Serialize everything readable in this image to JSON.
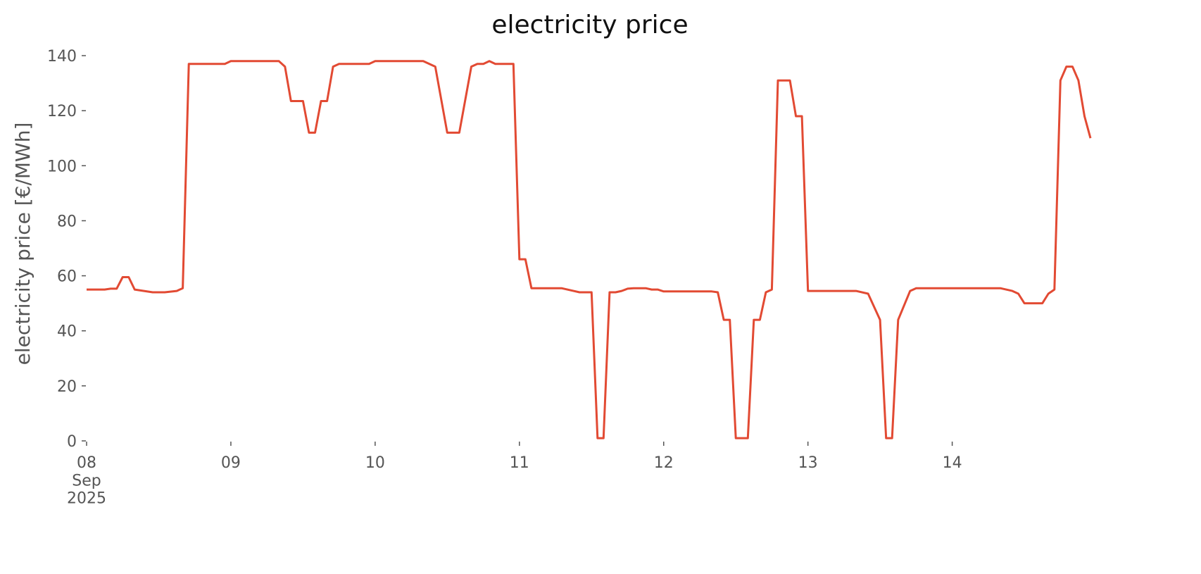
{
  "chart_data": {
    "type": "line",
    "title": "electricity price",
    "y_label": "electricity price [€/MWh]",
    "x": [
      "2025-09-08T00:00",
      "2025-09-08T03:00",
      "2025-09-08T04:00",
      "2025-09-08T05:00",
      "2025-09-08T06:00",
      "2025-09-08T07:00",
      "2025-09-08T08:00",
      "2025-09-08T11:00",
      "2025-09-08T13:00",
      "2025-09-08T15:00",
      "2025-09-08T16:00",
      "2025-09-08T17:00",
      "2025-09-08T23:00",
      "2025-09-09T00:00",
      "2025-09-09T08:00",
      "2025-09-09T09:00",
      "2025-09-09T10:00",
      "2025-09-09T12:00",
      "2025-09-09T13:00",
      "2025-09-09T14:00",
      "2025-09-09T15:00",
      "2025-09-09T16:00",
      "2025-09-09T17:00",
      "2025-09-09T18:00",
      "2025-09-09T23:00",
      "2025-09-10T00:00",
      "2025-09-10T08:00",
      "2025-09-10T10:00",
      "2025-09-10T12:00",
      "2025-09-10T14:00",
      "2025-09-10T16:00",
      "2025-09-10T17:00",
      "2025-09-10T18:00",
      "2025-09-10T19:00",
      "2025-09-10T20:00",
      "2025-09-10T23:00",
      "2025-09-11T00:00",
      "2025-09-11T01:00",
      "2025-09-11T02:00",
      "2025-09-11T07:00",
      "2025-09-11T09:00",
      "2025-09-11T10:00",
      "2025-09-11T12:00",
      "2025-09-11T13:00",
      "2025-09-11T14:00",
      "2025-09-11T15:00",
      "2025-09-11T16:00",
      "2025-09-11T17:00",
      "2025-09-11T18:00",
      "2025-09-11T19:00",
      "2025-09-11T21:00",
      "2025-09-11T22:00",
      "2025-09-11T23:00",
      "2025-09-12T00:00",
      "2025-09-12T08:00",
      "2025-09-12T09:00",
      "2025-09-12T10:00",
      "2025-09-12T11:00",
      "2025-09-12T12:00",
      "2025-09-12T14:00",
      "2025-09-12T15:00",
      "2025-09-12T16:00",
      "2025-09-12T17:00",
      "2025-09-12T18:00",
      "2025-09-12T19:00",
      "2025-09-12T21:00",
      "2025-09-12T22:00",
      "2025-09-12T23:00",
      "2025-09-13T00:00",
      "2025-09-13T08:00",
      "2025-09-13T10:00",
      "2025-09-13T12:00",
      "2025-09-13T13:00",
      "2025-09-13T14:00",
      "2025-09-13T15:00",
      "2025-09-13T17:00",
      "2025-09-13T18:00",
      "2025-09-14T08:00",
      "2025-09-14T10:00",
      "2025-09-14T11:00",
      "2025-09-14T12:00",
      "2025-09-14T15:00",
      "2025-09-14T16:00",
      "2025-09-14T17:00",
      "2025-09-14T18:00",
      "2025-09-14T19:00",
      "2025-09-14T20:00",
      "2025-09-14T21:00",
      "2025-09-14T22:00",
      "2025-09-14T23:00"
    ],
    "series": [
      {
        "name": "electricity price",
        "color": "#e24a33",
        "values": [
          55,
          55,
          55.3,
          55.3,
          59.5,
          59.5,
          55,
          54,
          54,
          54.5,
          55.5,
          137,
          137,
          138,
          138,
          136,
          123.5,
          123.5,
          112,
          112,
          123.5,
          123.5,
          136,
          137,
          137,
          138,
          138,
          136,
          112,
          112,
          136,
          137,
          137,
          138,
          137,
          137,
          66,
          66,
          55.5,
          55.5,
          54.5,
          54,
          54,
          1,
          1,
          54,
          54,
          54.5,
          55.3,
          55.5,
          55.5,
          55,
          55,
          54.3,
          54.3,
          54,
          44,
          44,
          1,
          1,
          44,
          44,
          54,
          55,
          131,
          131,
          118,
          118,
          54.5,
          54.5,
          53.5,
          44,
          1,
          1,
          44,
          54.5,
          55.5,
          55.5,
          54.5,
          53.5,
          50,
          50,
          53.5,
          55,
          131,
          136,
          136,
          131,
          118,
          110
        ]
      }
    ],
    "xlim": [
      "2025-09-08T00:00",
      "2025-09-14T23:00"
    ],
    "xticks": [
      {
        "value": "2025-09-08T00:00",
        "label": "08\nSep\n2025"
      },
      {
        "value": "2025-09-09T00:00",
        "label": "09"
      },
      {
        "value": "2025-09-10T00:00",
        "label": "10"
      },
      {
        "value": "2025-09-11T00:00",
        "label": "11"
      },
      {
        "value": "2025-09-12T00:00",
        "label": "12"
      },
      {
        "value": "2025-09-13T00:00",
        "label": "13"
      },
      {
        "value": "2025-09-14T00:00",
        "label": "14"
      }
    ],
    "ylim": [
      0,
      140
    ],
    "yticks": [
      0,
      20,
      40,
      60,
      80,
      100,
      120,
      140
    ],
    "grid": false
  }
}
